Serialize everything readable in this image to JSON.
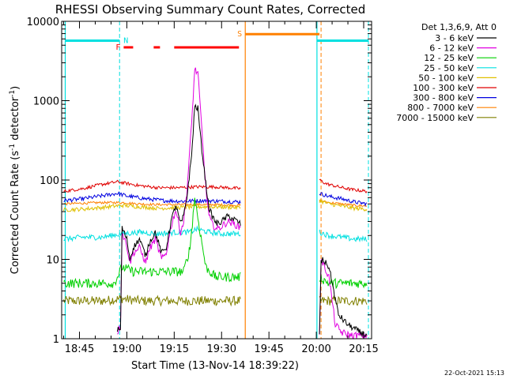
{
  "chart_data": {
    "type": "line",
    "title": "RHESSI Observing Summary Count Rates, Corrected",
    "xlabel": "Start Time (13-Nov-14 18:39:22)",
    "ylabel_main": "Corrected Count Rate (s",
    "ylabel_sup": "-1",
    "ylabel_mid": " detector",
    "ylabel_sup2": "-1",
    "ylabel_end": ")",
    "yscale": "log",
    "ylim": [
      1,
      10000
    ],
    "xlim_minutes": [
      39.37,
      137.5
    ],
    "y_ticks": [
      {
        "value": 1,
        "label": "1"
      },
      {
        "value": 10,
        "label": "10"
      },
      {
        "value": 100,
        "label": "100"
      },
      {
        "value": 1000,
        "label": "1000"
      },
      {
        "value": 10000,
        "label": "10000"
      }
    ],
    "x_ticks": [
      {
        "t": 45,
        "label": "18:45"
      },
      {
        "t": 60,
        "label": "19:00"
      },
      {
        "t": 75,
        "label": "19:15"
      },
      {
        "t": 90,
        "label": "19:30"
      },
      {
        "t": 105,
        "label": "19:45"
      },
      {
        "t": 120,
        "label": "20:00"
      },
      {
        "t": 135,
        "label": "20:15"
      }
    ],
    "legend_title": "Det 1,3,6,9, Att 0",
    "series": [
      {
        "name": "3 - 6 keV",
        "color": "#000000",
        "seg1": [
          [
            57,
            1.3
          ],
          [
            58,
            1.3
          ],
          [
            58.5,
            25
          ],
          [
            60,
            18
          ],
          [
            61,
            10
          ],
          [
            62,
            14
          ],
          [
            64,
            18
          ],
          [
            66,
            11
          ],
          [
            67,
            16
          ],
          [
            69,
            22
          ],
          [
            71,
            12
          ],
          [
            72.5,
            14
          ],
          [
            74,
            30
          ],
          [
            75.5,
            48
          ],
          [
            77,
            28
          ],
          [
            78,
            35
          ],
          [
            79,
            60
          ],
          [
            80.5,
            200
          ],
          [
            81.5,
            850
          ],
          [
            82.5,
            800
          ],
          [
            83.5,
            300
          ],
          [
            85,
            90
          ],
          [
            86,
            45
          ],
          [
            87,
            35
          ],
          [
            88.5,
            28
          ],
          [
            90,
            30
          ],
          [
            92,
            35
          ],
          [
            94,
            32
          ],
          [
            96,
            28
          ]
        ],
        "seg2": [
          [
            121,
            1.1
          ],
          [
            121.5,
            9
          ],
          [
            122,
            10
          ],
          [
            124,
            8
          ],
          [
            127,
            2
          ],
          [
            130,
            1.5
          ],
          [
            134,
            1.2
          ],
          [
            136,
            1.1
          ]
        ]
      },
      {
        "name": "6 - 12 keV",
        "color": "#e000e0",
        "seg1": [
          [
            57,
            1.2
          ],
          [
            58,
            1.5
          ],
          [
            58.5,
            22
          ],
          [
            60,
            15
          ],
          [
            61,
            9
          ],
          [
            62,
            12
          ],
          [
            64,
            14
          ],
          [
            66,
            9
          ],
          [
            67,
            13
          ],
          [
            69,
            18
          ],
          [
            71,
            10
          ],
          [
            72.5,
            12
          ],
          [
            74,
            26
          ],
          [
            75.5,
            42
          ],
          [
            77,
            22
          ],
          [
            78,
            30
          ],
          [
            79,
            70
          ],
          [
            80.5,
            500
          ],
          [
            81.5,
            2500
          ],
          [
            82.5,
            2200
          ],
          [
            83.5,
            600
          ],
          [
            85,
            80
          ],
          [
            86,
            35
          ],
          [
            87,
            28
          ],
          [
            88.5,
            24
          ],
          [
            90,
            26
          ],
          [
            92,
            30
          ],
          [
            94,
            28
          ],
          [
            96,
            25
          ]
        ],
        "seg2": [
          [
            121,
            1.2
          ],
          [
            121.5,
            10
          ],
          [
            122,
            9
          ],
          [
            124,
            6
          ],
          [
            126,
            1.5
          ],
          [
            128,
            1.2
          ],
          [
            131,
            1.1
          ],
          [
            136,
            1.1
          ]
        ]
      },
      {
        "name": "12 - 25 keV",
        "color": "#00d000",
        "seg1": [
          [
            40,
            5
          ],
          [
            48,
            5
          ],
          [
            56,
            5
          ],
          [
            58.5,
            8
          ],
          [
            62,
            7
          ],
          [
            66,
            7
          ],
          [
            70,
            7
          ],
          [
            74,
            7
          ],
          [
            78,
            7
          ],
          [
            80,
            14
          ],
          [
            81.5,
            60
          ],
          [
            83,
            25
          ],
          [
            85,
            8
          ],
          [
            88,
            6
          ],
          [
            92,
            6
          ],
          [
            96,
            6
          ]
        ],
        "seg2": [
          [
            121,
            6
          ],
          [
            124,
            5
          ],
          [
            128,
            5
          ],
          [
            132,
            5
          ],
          [
            136,
            5
          ]
        ]
      },
      {
        "name": "25 - 50 keV",
        "color": "#00e0e0",
        "seg1": [
          [
            40,
            18
          ],
          [
            46,
            19
          ],
          [
            52,
            19
          ],
          [
            58.5,
            21
          ],
          [
            64,
            22
          ],
          [
            70,
            21
          ],
          [
            76,
            22
          ],
          [
            80,
            22
          ],
          [
            82,
            24
          ],
          [
            86,
            22
          ],
          [
            90,
            21
          ],
          [
            96,
            21
          ]
        ],
        "seg2": [
          [
            121,
            22
          ],
          [
            124,
            20
          ],
          [
            128,
            19
          ],
          [
            132,
            18
          ],
          [
            136,
            18
          ]
        ]
      },
      {
        "name": "50 - 100 keV",
        "color": "#e0c000",
        "seg1": [
          [
            40,
            42
          ],
          [
            46,
            43
          ],
          [
            52,
            45
          ],
          [
            58.5,
            48
          ],
          [
            64,
            46
          ],
          [
            70,
            44
          ],
          [
            76,
            45
          ],
          [
            82,
            46
          ],
          [
            88,
            46
          ],
          [
            96,
            45
          ]
        ],
        "seg2": [
          [
            121,
            55
          ],
          [
            124,
            50
          ],
          [
            128,
            47
          ],
          [
            132,
            44
          ],
          [
            136,
            43
          ]
        ]
      },
      {
        "name": "100 - 300 keV",
        "color": "#e00000",
        "seg1": [
          [
            40,
            72
          ],
          [
            46,
            78
          ],
          [
            52,
            88
          ],
          [
            57,
            95
          ],
          [
            59,
            92
          ],
          [
            64,
            85
          ],
          [
            70,
            80
          ],
          [
            76,
            80
          ],
          [
            82,
            82
          ],
          [
            88,
            82
          ],
          [
            96,
            78
          ]
        ],
        "seg2": [
          [
            121,
            100
          ],
          [
            123,
            90
          ],
          [
            127,
            82
          ],
          [
            131,
            76
          ],
          [
            136,
            72
          ]
        ]
      },
      {
        "name": "300 - 800 keV",
        "color": "#0000e0",
        "seg1": [
          [
            40,
            55
          ],
          [
            46,
            58
          ],
          [
            52,
            63
          ],
          [
            57,
            68
          ],
          [
            60,
            63
          ],
          [
            66,
            58
          ],
          [
            72,
            55
          ],
          [
            78,
            54
          ],
          [
            84,
            55
          ],
          [
            90,
            54
          ],
          [
            96,
            53
          ]
        ],
        "seg2": [
          [
            121,
            68
          ],
          [
            124,
            62
          ],
          [
            128,
            58
          ],
          [
            132,
            53
          ],
          [
            136,
            50
          ]
        ]
      },
      {
        "name": "800 - 7000 keV",
        "color": "#ff8000",
        "seg1": [
          [
            40,
            50
          ],
          [
            46,
            51
          ],
          [
            52,
            52
          ],
          [
            58.5,
            52
          ],
          [
            64,
            50
          ],
          [
            70,
            49
          ],
          [
            76,
            49
          ],
          [
            82,
            49
          ],
          [
            88,
            49
          ],
          [
            96,
            48
          ]
        ],
        "seg2": [
          [
            121,
            55
          ],
          [
            124,
            52
          ],
          [
            128,
            50
          ],
          [
            132,
            48
          ],
          [
            136,
            47
          ]
        ]
      },
      {
        "name": "7000 - 15000 keV",
        "color": "#808000",
        "seg1": [
          [
            40,
            3
          ],
          [
            46,
            3
          ],
          [
            52,
            3
          ],
          [
            58.5,
            3.2
          ],
          [
            64,
            3
          ],
          [
            70,
            3
          ],
          [
            76,
            3
          ],
          [
            82,
            3
          ],
          [
            88,
            3
          ],
          [
            96,
            3
          ]
        ],
        "seg2": [
          [
            121,
            3
          ],
          [
            124,
            3
          ],
          [
            128,
            3
          ],
          [
            132,
            3
          ],
          [
            136,
            3
          ]
        ]
      }
    ],
    "bars": [
      {
        "label": "N",
        "color": "#00e0e0",
        "y": 5700,
        "ranges": [
          [
            40.5,
            57.7
          ],
          [
            120.2,
            136.5
          ]
        ]
      },
      {
        "label": "F",
        "color": "#ff0000",
        "y": 4700,
        "ranges": [
          [
            59,
            62
          ],
          [
            68.5,
            70.5
          ],
          [
            75,
            95.5
          ]
        ]
      },
      {
        "label": "S",
        "color": "#ff8000",
        "y": 6900,
        "ranges": [
          [
            97.5,
            121
          ]
        ]
      }
    ],
    "vlines_solid": [
      {
        "t": 40.5,
        "color": "#00e0e0"
      },
      {
        "t": 97.5,
        "color": "#ff8000"
      },
      {
        "t": 120.2,
        "color": "#00e0e0"
      }
    ],
    "vlines_dashed": [
      {
        "t": 57.7,
        "color": "#00e0e0"
      },
      {
        "t": 121.5,
        "color": "#ff8000"
      },
      {
        "t": 136.5,
        "color": "#00e0e0"
      }
    ]
  },
  "timestamp": "22-Oct-2021 15:13"
}
